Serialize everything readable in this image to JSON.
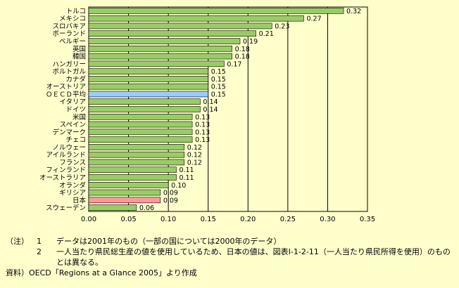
{
  "chart_data": {
    "type": "bar",
    "orientation": "horizontal",
    "categories": [
      "トルコ",
      "メキシコ",
      "スロバキア",
      "ポーランド",
      "ベルギー",
      "英国",
      "韓国",
      "ハンガリー",
      "ポルトガル",
      "カナダ",
      "オーストリア",
      "ＯＥＣＤ平均",
      "イタリア",
      "ドイツ",
      "米国",
      "スペイン",
      "デンマーク",
      "チェコ",
      "ノルウェー",
      "アイルランド",
      "フランス",
      "フィンランド",
      "オーストラリア",
      "オランダ",
      "ギリシア",
      "日本",
      "スウェーデン"
    ],
    "values": [
      0.32,
      0.27,
      0.23,
      0.21,
      0.19,
      0.18,
      0.18,
      0.17,
      0.15,
      0.15,
      0.15,
      0.15,
      0.14,
      0.14,
      0.13,
      0.13,
      0.13,
      0.13,
      0.12,
      0.12,
      0.12,
      0.11,
      0.11,
      0.1,
      0.09,
      0.09,
      0.06
    ],
    "value_labels": [
      "0.32",
      "0.27",
      "0.23",
      "0.21",
      "0.19",
      "0.18",
      "0.18",
      "0.17",
      "0.15",
      "0.15",
      "0.15",
      "0.15",
      "0.14",
      "0.14",
      "0.13",
      "0.13",
      "0.13",
      "0.13",
      "0.12",
      "0.12",
      "0.12",
      "0.11",
      "0.11",
      "0.10",
      "0.09",
      "0.09",
      "0.06"
    ],
    "xlim": [
      0,
      0.35
    ],
    "x_ticks": [
      "0.00",
      "0.05",
      "0.10",
      "0.15",
      "0.20",
      "0.25",
      "0.30",
      "0.35"
    ],
    "grid": "vertical",
    "colors": {
      "default": "#99cc66",
      "oecd": "#99ccff",
      "japan": "#ff9999",
      "grid": "#000000"
    },
    "highlight": {
      "ＯＥＣＤ平均": "oecd",
      "日本": "japan"
    }
  },
  "notes": {
    "label": "（注）",
    "items": [
      {
        "num": "1",
        "text": "データは2001年のもの（一部の国については2000年のデータ）"
      },
      {
        "num": "2",
        "text": "一人当たり県民総生産の値を使用しているため、日本の値は、図表Ⅰ-1-2-11（一人当たり県民所得を使用）のものとは異なる。"
      }
    ]
  },
  "source": {
    "label": "資料）",
    "text": "OECD「Regions at a Glance 2005」より作成"
  }
}
